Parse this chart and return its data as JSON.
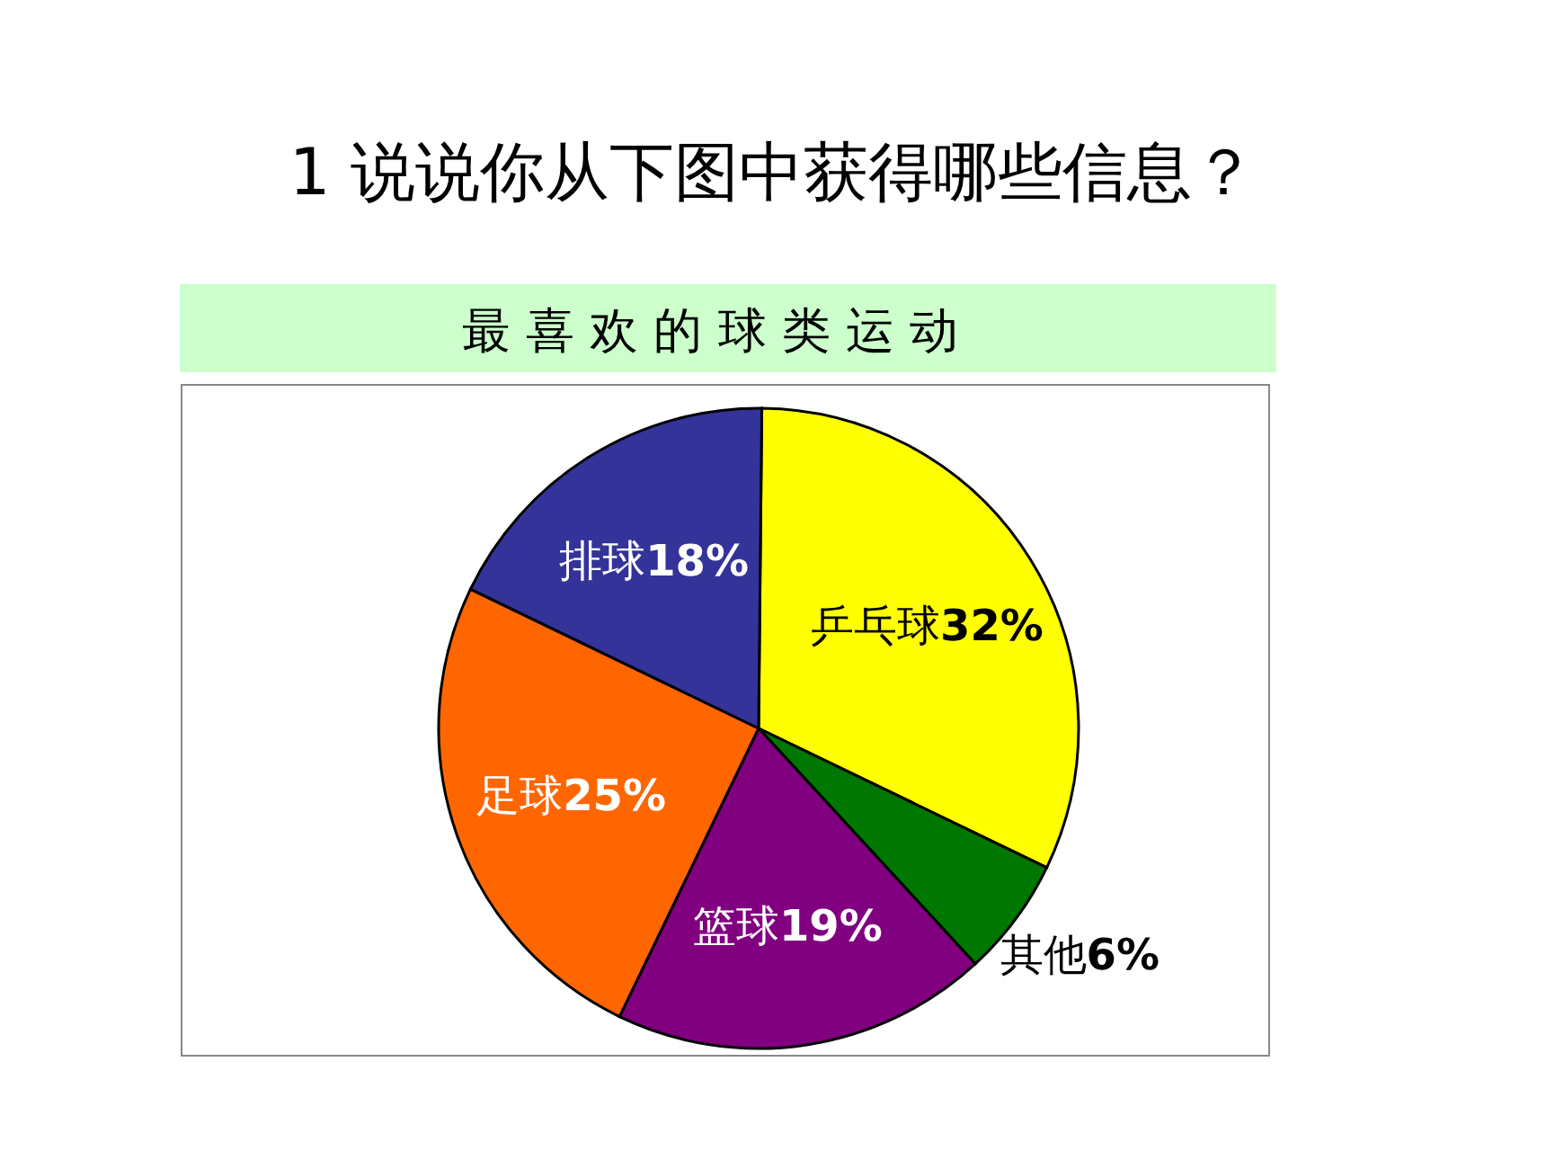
{
  "chart_data": {
    "type": "pie",
    "title": "1 说说你从下图中获得哪些信息？",
    "subtitle": "最 喜 欢 的 球 类 运 动",
    "categories": [
      "乒乓球",
      "其他",
      "篮球",
      "足球",
      "排球"
    ],
    "values": [
      32,
      6,
      19,
      25,
      18
    ],
    "colors": [
      "#ffff00",
      "#007700",
      "#800080",
      "#ff6600",
      "#333399"
    ],
    "value_labels": [
      "32%",
      "6%",
      "19%",
      "25%",
      "18%"
    ]
  }
}
